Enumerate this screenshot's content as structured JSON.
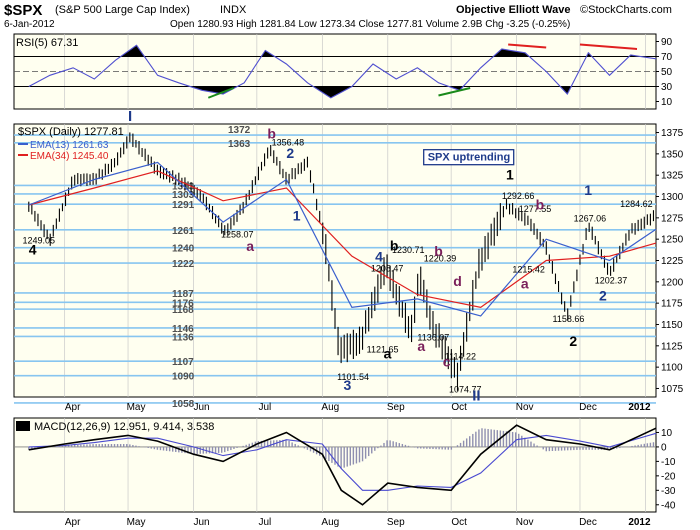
{
  "header": {
    "symbol": "$SPX",
    "description": "(S&P 500 Large Cap Index)",
    "exchange": "INDX",
    "date": "6-Jan-2012",
    "ohlc_text": "Open 1280.93  High 1281.84  Low 1273.34  Close 1277.81  Volume 2.9B  Chg -3.25 (-0.25%)",
    "source_title": "Objective Elliott Wave",
    "copyright": "©StockCharts.com"
  },
  "colors": {
    "panel_bg": "#fffff0",
    "price_bar": "#000000",
    "ema13": "#3a5fcd",
    "ema34": "#e02020",
    "rsi_line": "#5050d0",
    "macd_line": "#000000",
    "macd_signal": "#4a4ad0",
    "hist": "#8f8fb0",
    "support_line": "#87c5f0",
    "wave_navy": "#1e3a8a",
    "wave_maroon": "#7a1f5a",
    "divergence_red": "#e02020",
    "divergence_green": "#1a8a1a"
  },
  "chart_data": [
    {
      "type": "line",
      "name": "rsi_panel",
      "title": "RSI(5) 67.31",
      "ylim": [
        0,
        100
      ],
      "y_ticks": [
        10,
        30,
        50,
        70,
        90
      ],
      "reference_lines": [
        70,
        50,
        30
      ],
      "wave_label": "I",
      "series": [
        {
          "name": "RSI(5)",
          "x": [
            "Mar 15",
            "Mar 25",
            "Apr 5",
            "Apr 15",
            "Apr 25",
            "May 5",
            "May 15",
            "May 25",
            "Jun 5",
            "Jun 15",
            "Jun 25",
            "Jul 5",
            "Jul 15",
            "Jul 25",
            "Aug 5",
            "Aug 15",
            "Aug 25",
            "Sep 5",
            "Sep 15",
            "Sep 25",
            "Oct 5",
            "Oct 15",
            "Oct 25",
            "Nov 5",
            "Nov 15",
            "Nov 25",
            "Dec 5",
            "Dec 15",
            "Dec 25",
            "Jan 6"
          ],
          "values": [
            30,
            45,
            55,
            40,
            65,
            85,
            45,
            35,
            25,
            20,
            35,
            78,
            60,
            35,
            15,
            30,
            60,
            40,
            55,
            35,
            25,
            55,
            80,
            75,
            50,
            20,
            75,
            45,
            72,
            67
          ]
        }
      ]
    },
    {
      "type": "line",
      "name": "price_panel",
      "legend_title": "$SPX (Daily) 1277.81",
      "ylim": [
        1065,
        1385
      ],
      "y_ticks": [
        1075,
        1100,
        1125,
        1150,
        1175,
        1200,
        1225,
        1250,
        1275,
        1300,
        1325,
        1350,
        1375
      ],
      "x_ticks": [
        "Apr",
        "May",
        "Jun",
        "Jul",
        "Aug",
        "Sep",
        "Oct",
        "Nov",
        "Dec",
        "2012"
      ],
      "horizontal_levels": [
        1372,
        1363,
        1313,
        1303,
        1291,
        1261,
        1240,
        1222,
        1187,
        1176,
        1168,
        1146,
        1136,
        1107,
        1090,
        1058
      ],
      "series": [
        {
          "name": "$SPX",
          "x": [
            "Mar 15",
            "Mar 25",
            "Apr 5",
            "Apr 15",
            "Apr 25",
            "May 2",
            "May 15",
            "May 25",
            "Jun 5",
            "Jun 16",
            "Jun 25",
            "Jul 7",
            "Jul 15",
            "Jul 25",
            "Aug 2",
            "Aug 9",
            "Aug 19",
            "Aug 31",
            "Sep 12",
            "Sep 16",
            "Sep 22",
            "Oct 4",
            "Oct 14",
            "Oct 27",
            "Nov 7",
            "Nov 15",
            "Nov 25",
            "Dec 5",
            "Dec 15",
            "Dec 25",
            "Jan 6"
          ],
          "values": [
            1290,
            1249,
            1320,
            1320,
            1340,
            1370,
            1330,
            1320,
            1300,
            1258,
            1290,
            1356,
            1320,
            1340,
            1250,
            1120,
            1130,
            1220,
            1140,
            1208,
            1150,
            1090,
            1220,
            1290,
            1270,
            1240,
            1160,
            1267,
            1210,
            1260,
            1278
          ]
        },
        {
          "name": "EMA(13) 1261.63",
          "x": [
            "Mar 15",
            "Apr 15",
            "May 15",
            "Jun 15",
            "Jul 15",
            "Aug 15",
            "Sep 15",
            "Oct 15",
            "Nov 15",
            "Dec 15",
            "Jan 6"
          ],
          "values": [
            1290,
            1320,
            1340,
            1270,
            1320,
            1170,
            1180,
            1160,
            1250,
            1225,
            1261.63
          ]
        },
        {
          "name": "EMA(34) 1245.40",
          "x": [
            "Mar 15",
            "Apr 15",
            "May 15",
            "Jun 15",
            "Jul 15",
            "Aug 15",
            "Sep 15",
            "Oct 15",
            "Nov 15",
            "Dec 15",
            "Jan 6"
          ],
          "values": [
            1290,
            1310,
            1330,
            1295,
            1310,
            1230,
            1185,
            1170,
            1225,
            1230,
            1245.4
          ]
        }
      ],
      "annotations": {
        "level_labels": [
          "1372",
          "1363",
          "1313",
          "1303",
          "1291",
          "1261",
          "1240",
          "1222",
          "1187",
          "1176",
          "1168",
          "1146",
          "1136",
          "1107",
          "1090",
          "1058"
        ],
        "price_labels": [
          "1249.05",
          "1258.07",
          "1356.48",
          "1101.54",
          "1121.65",
          "1208.47",
          "1230.71",
          "1220.39",
          "1136.07",
          "1114.22",
          "1074.77",
          "1292.66",
          "1277.55",
          "1215.42",
          "1267.06",
          "1158.66",
          "1202.37",
          "1284.62"
        ],
        "wave_labels": [
          "4",
          "a",
          "b",
          "2",
          "1",
          "3",
          "4",
          "a",
          "b",
          "b",
          "a",
          "c",
          "d",
          "II",
          "1",
          "b",
          "a",
          "2",
          "1",
          "2"
        ],
        "callout": "SPX uptrending"
      }
    },
    {
      "type": "line",
      "name": "macd_panel",
      "title": "MACD(12,26,9) 12.951, 9.414, 3.538",
      "ylim": [
        -45,
        20
      ],
      "y_ticks": [
        -40,
        -30,
        -20,
        -10,
        0,
        10
      ],
      "x_ticks": [
        "Apr",
        "May",
        "Jun",
        "Jul",
        "Aug",
        "Sep",
        "Oct",
        "Nov",
        "Dec",
        "2012"
      ],
      "series": [
        {
          "name": "MACD",
          "x": [
            "Mar 15",
            "Apr 1",
            "Apr 15",
            "May 1",
            "May 15",
            "Jun 1",
            "Jun 15",
            "Jul 1",
            "Jul 15",
            "Aug 1",
            "Aug 10",
            "Aug 20",
            "Sep 1",
            "Sep 15",
            "Oct 1",
            "Oct 15",
            "Nov 1",
            "Nov 15",
            "Dec 1",
            "Dec 15",
            "Jan 6"
          ],
          "values": [
            -2,
            2,
            5,
            8,
            4,
            -5,
            -10,
            2,
            10,
            -5,
            -30,
            -40,
            -25,
            -28,
            -30,
            -5,
            15,
            5,
            2,
            -2,
            12.951
          ]
        },
        {
          "name": "Signal",
          "x": [
            "Mar 15",
            "Apr 1",
            "Apr 15",
            "May 1",
            "May 15",
            "Jun 1",
            "Jun 15",
            "Jul 1",
            "Jul 15",
            "Aug 1",
            "Aug 10",
            "Aug 20",
            "Sep 1",
            "Sep 15",
            "Oct 1",
            "Oct 15",
            "Nov 1",
            "Nov 15",
            "Dec 1",
            "Dec 15",
            "Jan 6"
          ],
          "values": [
            0,
            1,
            3,
            6,
            6,
            0,
            -6,
            -2,
            5,
            2,
            -15,
            -30,
            -30,
            -27,
            -28,
            -18,
            5,
            8,
            4,
            0,
            9.414
          ]
        },
        {
          "name": "Histogram",
          "x": [
            "Mar 15",
            "Apr 1",
            "Apr 15",
            "May 1",
            "May 15",
            "Jun 1",
            "Jun 15",
            "Jul 1",
            "Jul 15",
            "Aug 1",
            "Aug 10",
            "Aug 20",
            "Sep 1",
            "Sep 15",
            "Oct 1",
            "Oct 15",
            "Nov 1",
            "Nov 15",
            "Dec 1",
            "Dec 15",
            "Jan 6"
          ],
          "values": [
            -2,
            1,
            2,
            2,
            -2,
            -5,
            -4,
            4,
            5,
            -7,
            -15,
            -10,
            5,
            -1,
            -2,
            13,
            10,
            -3,
            -2,
            -2,
            3.538
          ]
        }
      ]
    }
  ]
}
